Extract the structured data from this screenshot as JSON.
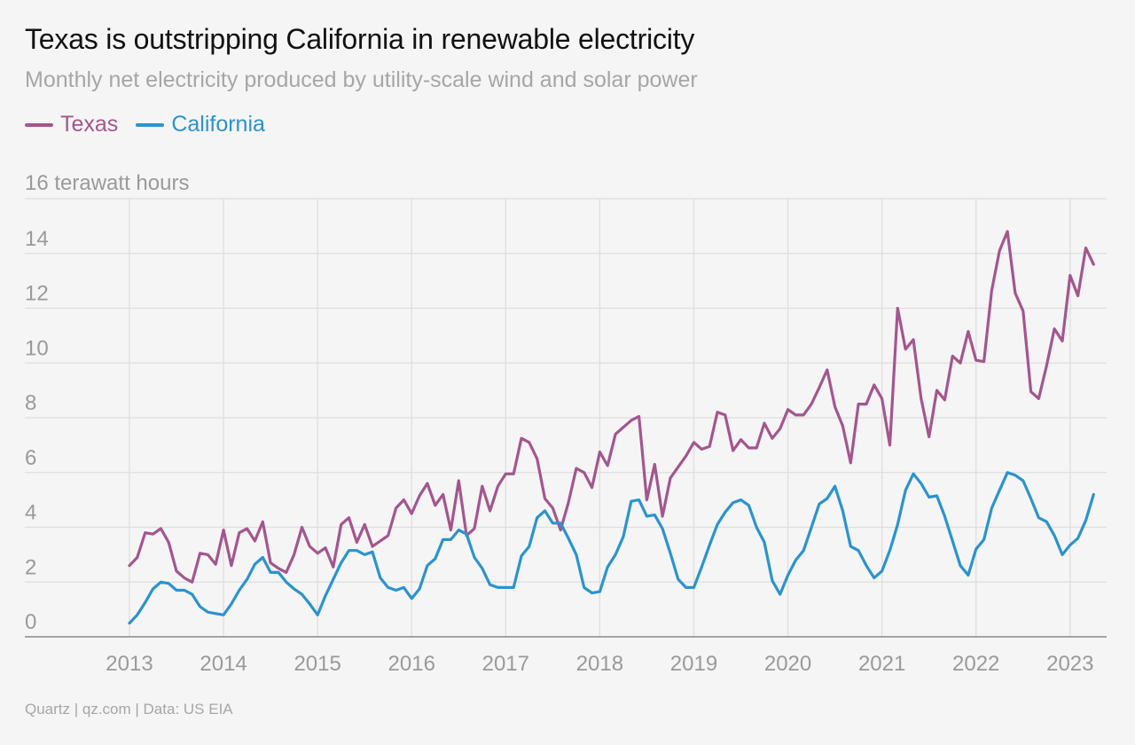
{
  "title": "Texas is outstripping California in renewable electricity",
  "subtitle": "Monthly net electricity produced by utility-scale wind and solar power",
  "footer": "Quartz | qz.com | Data: US EIA",
  "colors": {
    "texas": "#a4558e",
    "california": "#2a93d0",
    "grid": "#dedede",
    "axis": "#9a9a9a"
  },
  "chart_data": {
    "type": "line",
    "title": "Texas is outstripping California in renewable electricity",
    "ylabel": "16 terawatt hours",
    "ylim": [
      0,
      16
    ],
    "yticks": [
      0,
      2,
      4,
      6,
      8,
      10,
      12,
      14
    ],
    "xticks": [
      "2013",
      "2014",
      "2015",
      "2016",
      "2017",
      "2018",
      "2019",
      "2020",
      "2021",
      "2022",
      "2023"
    ],
    "x_start": "2013-01",
    "x_step": "month",
    "grid": true,
    "legend": "top-left",
    "series": [
      {
        "name": "Texas",
        "values": [
          2.6,
          2.9,
          3.8,
          3.75,
          3.95,
          3.45,
          2.4,
          2.15,
          2.0,
          3.05,
          3.0,
          2.65,
          3.9,
          2.6,
          3.8,
          3.95,
          3.5,
          4.2,
          2.7,
          2.5,
          2.35,
          3.0,
          4.0,
          3.3,
          3.05,
          3.25,
          2.55,
          4.1,
          4.35,
          3.45,
          4.1,
          3.3,
          3.5,
          3.7,
          4.7,
          5.0,
          4.5,
          5.15,
          5.6,
          4.8,
          5.2,
          3.9,
          5.7,
          3.7,
          3.95,
          5.5,
          4.6,
          5.5,
          5.95,
          5.95,
          7.25,
          7.1,
          6.5,
          5.05,
          4.7,
          3.9,
          4.9,
          6.15,
          6.0,
          5.45,
          6.75,
          6.25,
          7.4,
          7.65,
          7.9,
          8.05,
          5.0,
          6.3,
          4.4,
          5.8,
          6.2,
          6.6,
          7.1,
          6.85,
          6.95,
          8.2,
          8.1,
          6.8,
          7.2,
          6.9,
          6.9,
          7.8,
          7.25,
          7.6,
          8.3,
          8.1,
          8.1,
          8.5,
          9.1,
          9.75,
          8.4,
          7.7,
          6.35,
          8.5,
          8.5,
          9.2,
          8.7,
          7.0,
          12.0,
          10.5,
          10.85,
          8.7,
          7.3,
          9.0,
          8.65,
          10.25,
          10.0,
          11.15,
          10.1,
          10.05,
          12.65,
          14.1,
          14.8,
          12.55,
          11.9,
          8.95,
          8.7,
          9.9,
          11.25,
          10.8,
          13.2,
          12.45,
          14.2,
          13.6
        ]
      },
      {
        "name": "California",
        "values": [
          0.5,
          0.8,
          1.25,
          1.75,
          2.0,
          1.95,
          1.7,
          1.7,
          1.55,
          1.1,
          0.9,
          0.85,
          0.8,
          1.2,
          1.7,
          2.1,
          2.65,
          2.9,
          2.35,
          2.35,
          2.0,
          1.75,
          1.55,
          1.2,
          0.8,
          1.5,
          2.1,
          2.7,
          3.15,
          3.15,
          3.0,
          3.1,
          2.15,
          1.8,
          1.7,
          1.8,
          1.4,
          1.75,
          2.6,
          2.85,
          3.55,
          3.55,
          3.9,
          3.75,
          2.9,
          2.5,
          1.9,
          1.8,
          1.8,
          1.8,
          2.95,
          3.3,
          4.35,
          4.6,
          4.15,
          4.15,
          3.6,
          3.0,
          1.8,
          1.6,
          1.65,
          2.55,
          3.0,
          3.65,
          4.95,
          5.0,
          4.4,
          4.45,
          3.95,
          3.05,
          2.1,
          1.8,
          1.8,
          2.55,
          3.35,
          4.1,
          4.55,
          4.9,
          5.0,
          4.8,
          4.0,
          3.45,
          2.05,
          1.55,
          2.25,
          2.8,
          3.15,
          4.0,
          4.85,
          5.05,
          5.5,
          4.6,
          3.3,
          3.15,
          2.6,
          2.15,
          2.4,
          3.15,
          4.1,
          5.35,
          5.95,
          5.6,
          5.1,
          5.15,
          4.4,
          3.5,
          2.6,
          2.25,
          3.2,
          3.55,
          4.7,
          5.35,
          6.0,
          5.9,
          5.7,
          5.05,
          4.35,
          4.2,
          3.7,
          3.0,
          3.35,
          3.6,
          4.25,
          5.2
        ]
      }
    ]
  }
}
